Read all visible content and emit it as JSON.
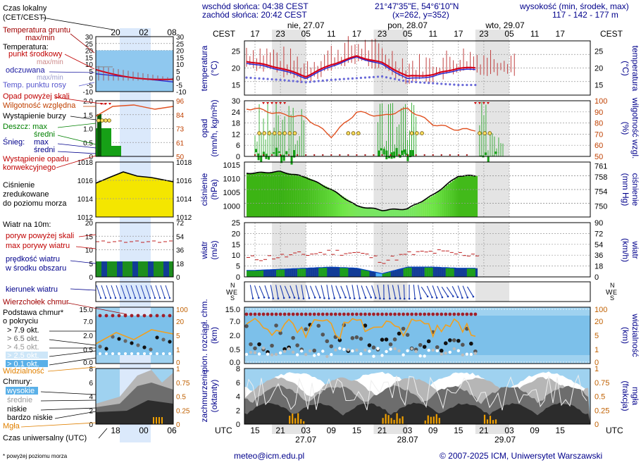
{
  "header": {
    "sunrise": "wschód słońca: 04:38 CEST",
    "sunset": "zachód słońca: 20:42 CEST",
    "coords": "21°47'35\"E, 54°6'10\"N",
    "grid": "(x=262, y=352)",
    "elev_title": "wysokość (min, środek, max)",
    "elev_values": "117 - 142 - 177 m"
  },
  "legend": {
    "time_local": "Czas lokalny",
    "time_local2": "(CET/CEST)",
    "soil_temp": "Temperatura gruntu",
    "soil_temp2": "max/min",
    "temperature": "Temperatura:",
    "mid_point": "punkt środkowy",
    "max_min": "max/min",
    "perceived": "odczuwana",
    "max_min2": "max/min",
    "dew_point": "Temp. punktu rosy",
    "precip_above": "Opad powyżej skali",
    "humidity": "Wilgotność względna",
    "storm": "Wystąpienie burzy",
    "rain": "Deszcz: max",
    "rain_mean": "średni",
    "snow": "Śnieg:",
    "snow_max": "max",
    "snow_mean": "średni",
    "conv": "Wystąpienie opadu",
    "conv2": "konwekcyjnego",
    "pressure1": "Ciśnienie",
    "pressure2": "zredukowane",
    "pressure3": "do poziomu morza",
    "wind_title": "Wiatr na 10m:",
    "gust_above": "poryw powyżej skali",
    "gust_max": "max porywy wiatru",
    "wind_speed": "prędkość wiatru",
    "wind_speed2": "w środku obszaru",
    "wind_dir": "kierunek wiatru",
    "cloud_top": "Wierzchołek chmur",
    "cloud_base": "Podstawa chmur*",
    "cloud_base2": "o pokryciu",
    "okt79": "> 7.9 okt.",
    "okt65": "> 6.5 okt.",
    "okt45": "> 4.5 okt.",
    "okt25": "> 2.5 okt.",
    "okt01": "> 0.1 okt.",
    "visibility": "Widzialność",
    "clouds": "Chmury:",
    "high": "wysokie",
    "mid": "średnie",
    "low": "niskie",
    "very_low": "bardzo niskie",
    "fog": "Mgła",
    "utc": "Czas uniwersalny (UTC)",
    "footnote": "* powyżej poziomu morza"
  },
  "main_labels": {
    "cest": "CEST",
    "utc": "UTC",
    "temp_left": "temperatura",
    "temp_left_unit": "(°C)",
    "temp_right": "temperatura",
    "temp_right_unit": "(°C)",
    "precip_left": "opad",
    "precip_left_unit": "(mm/h, kg/m²h)",
    "precip_right": "wilgotność wzgl.",
    "precip_right_unit": "(%)",
    "press_left": "ciśnienie",
    "press_left_unit": "(hPa)",
    "press_right": "ciśnienie",
    "press_right_unit": "(mm Hg)",
    "wind_left": "wiatr",
    "wind_left_unit": "(m/s)",
    "wind_right": "wiatr",
    "wind_right_unit": "(km/h)",
    "cloud_left": "pion. rozciągł. chm.",
    "cloud_left_unit": "(km)",
    "cloud_right": "widzialność",
    "cloud_right_unit": "(km)",
    "cover_left": "zachmurzenie",
    "cover_left_unit": "(oktanty)",
    "cover_right": "mgła",
    "cover_right_unit": "(frakcja)",
    "day1": "nie, 27.07",
    "day2": "pon, 28.07",
    "day3": "wto, 29.07",
    "dayb1": "27.07",
    "dayb2": "28.07",
    "dayb3": "29.07"
  },
  "footer": {
    "email": "meteo@icm.edu.pl",
    "copyright": "© 2007-2025 ICM, Uniwersytet Warszawski"
  },
  "axes": {
    "cest_ticks": [
      "17",
      "23",
      "05",
      "11",
      "17",
      "23",
      "05",
      "11",
      "17",
      "23",
      "05",
      "11",
      "17"
    ],
    "utc_ticks": [
      "15",
      "21",
      "03",
      "09",
      "15",
      "21",
      "03",
      "09",
      "15",
      "21",
      "03",
      "09",
      "15"
    ],
    "small_cest": [
      "20",
      "02",
      "08"
    ],
    "small_utc": [
      "18",
      "00",
      "06"
    ],
    "temp_ticks": [
      "25",
      "20",
      "15"
    ],
    "precip_ticks": [
      "30",
      "24",
      "18",
      "12",
      "6",
      "0"
    ],
    "hum_ticks": [
      "100",
      "90",
      "80",
      "70",
      "60",
      "50"
    ],
    "press_ticks": [
      "1015",
      "1010",
      "1005",
      "1000"
    ],
    "press_mm_ticks": [
      "761",
      "758",
      "754",
      "750"
    ],
    "wind_ticks": [
      "25",
      "20",
      "15",
      "10",
      "5",
      "0"
    ],
    "wind_kmh_ticks": [
      "90",
      "72",
      "54",
      "36",
      "18",
      "0"
    ],
    "cloud_ticks": [
      "15.0",
      "7.0",
      "2.0",
      "0.5",
      "0.0"
    ],
    "vis_ticks": [
      "100",
      "20",
      "5",
      "1",
      "0"
    ],
    "cover_ticks": [
      "8",
      "6",
      "4",
      "2",
      "0"
    ],
    "fog_ticks": [
      "1",
      "0.75",
      "0.5",
      "0.25",
      "0"
    ],
    "s_temp_left": [
      "30",
      "25",
      "20",
      "15",
      "10",
      "5",
      "0",
      "-5",
      "-10"
    ],
    "s_temp_right": [
      "30",
      "25",
      "20",
      "15",
      "10",
      "5",
      "0",
      "-5",
      "-10"
    ],
    "s_prec_left": [
      "2.0",
      "1.5",
      "1.0",
      "0.5",
      "0"
    ],
    "s_prec_right": [
      "96",
      "84",
      "73",
      "61",
      "50"
    ],
    "s_press_left": [
      "1018",
      "1016",
      "1014",
      "1012"
    ],
    "s_press_right": [
      "1018",
      "1016",
      "1014",
      "1012"
    ],
    "s_wind_left": [
      "20",
      "15",
      "10",
      "5",
      "0"
    ],
    "s_wind_right": [
      "72",
      "54",
      "36",
      "18",
      "0"
    ],
    "s_cloud_left": [
      "15.0",
      "7.0",
      "2.0",
      "0.5",
      "0.0"
    ],
    "s_cloud_right": [
      "100",
      "20",
      "5",
      "1",
      "0"
    ],
    "s_cover_left": [
      "8",
      "6",
      "4",
      "2",
      "0"
    ],
    "s_cover_right": [
      "1",
      "0.75",
      "0.5",
      "0.25",
      "0"
    ]
  },
  "chart_data": [
    {
      "type": "line",
      "title": "temperatura",
      "ylabel": "(°C)",
      "ylim": [
        12,
        30
      ],
      "x": [
        "27.07 15",
        "27.07 21",
        "28.07 03",
        "28.07 09",
        "28.07 15",
        "28.07 21",
        "29.07 03",
        "29.07 09",
        "29.07 15"
      ],
      "series": [
        {
          "name": "punkt środkowy",
          "values": [
            21.5,
            20,
            17.5,
            21,
            23.5,
            21.5,
            17.5,
            18,
            20
          ]
        },
        {
          "name": "odczuwana",
          "values": [
            21,
            19.5,
            17,
            20.5,
            23.2,
            21,
            16.8,
            17.5,
            19.5
          ]
        },
        {
          "name": "Temp. punktu rosy",
          "values": [
            17,
            16.5,
            15.8,
            16.5,
            17,
            17.5,
            16,
            15.5,
            15
          ]
        }
      ]
    },
    {
      "type": "bar",
      "title": "opad",
      "ylabel": "(mm/h, kg/m²h)",
      "ylim": [
        0,
        30
      ],
      "series": [
        {
          "name": "Wilgotność względna",
          "values": [
            93,
            88,
            85,
            68,
            90,
            86,
            93,
            79,
            74
          ]
        }
      ]
    },
    {
      "type": "area",
      "title": "ciśnienie",
      "ylabel": "(hPa)",
      "ylim": [
        997,
        1015
      ],
      "x": [
        "27.07 15",
        "27.07 21",
        "28.07 03",
        "28.07 09",
        "28.07 15",
        "28.07 21",
        "29.07 03",
        "29.07 09",
        "29.07 15"
      ],
      "values": [
        1012,
        1012.5,
        1010.5,
        1006,
        1000,
        998.5,
        999,
        1004,
        1011
      ]
    },
    {
      "type": "area",
      "title": "wiatr",
      "ylabel": "(m/s)",
      "ylim": [
        0,
        25
      ],
      "x": [
        "27.07 15",
        "27.07 21",
        "28.07 03",
        "28.07 09",
        "28.07 15",
        "28.07 21",
        "29.07 03",
        "29.07 09",
        "29.07 15"
      ],
      "series": [
        {
          "name": "prędkość wiatru",
          "values": [
            3,
            3.5,
            4,
            4.5,
            4,
            1.5,
            4.5,
            4.5,
            4
          ]
        },
        {
          "name": "max porywy wiatru",
          "values": [
            7,
            8,
            9,
            10,
            9.5,
            6,
            9,
            10,
            9
          ]
        }
      ]
    },
    {
      "type": "scatter",
      "title": "pion. rozciągł. chm.",
      "ylabel": "(km)",
      "ylim": [
        0,
        15
      ]
    },
    {
      "type": "area",
      "title": "zachmurzenie",
      "ylabel": "(oktanty)",
      "ylim": [
        0,
        8
      ]
    }
  ]
}
